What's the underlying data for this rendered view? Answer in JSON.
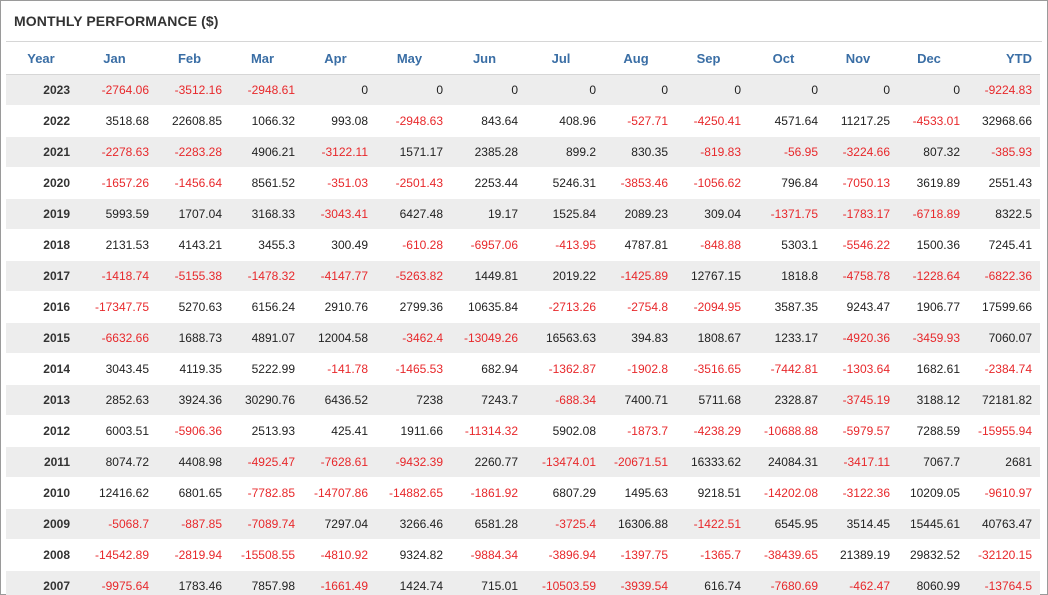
{
  "title": "MONTHLY PERFORMANCE ($)",
  "colors": {
    "header_text": "#3a6ea5",
    "negative": "#e8282b",
    "positive": "#222222",
    "stripe": "#ededed"
  },
  "headers": [
    "Year",
    "Jan",
    "Feb",
    "Mar",
    "Apr",
    "May",
    "Jun",
    "Jul",
    "Aug",
    "Sep",
    "Oct",
    "Nov",
    "Dec",
    "YTD"
  ],
  "rows": [
    {
      "year": "2023",
      "values": [
        "-2764.06",
        "-3512.16",
        "-2948.61",
        "0",
        "0",
        "0",
        "0",
        "0",
        "0",
        "0",
        "0",
        "0"
      ],
      "ytd": "-9224.83"
    },
    {
      "year": "2022",
      "values": [
        "3518.68",
        "22608.85",
        "1066.32",
        "993.08",
        "-2948.63",
        "843.64",
        "408.96",
        "-527.71",
        "-4250.41",
        "4571.64",
        "11217.25",
        "-4533.01"
      ],
      "ytd": "32968.66"
    },
    {
      "year": "2021",
      "values": [
        "-2278.63",
        "-2283.28",
        "4906.21",
        "-3122.11",
        "1571.17",
        "2385.28",
        "899.2",
        "830.35",
        "-819.83",
        "-56.95",
        "-3224.66",
        "807.32"
      ],
      "ytd": "-385.93"
    },
    {
      "year": "2020",
      "values": [
        "-1657.26",
        "-1456.64",
        "8561.52",
        "-351.03",
        "-2501.43",
        "2253.44",
        "5246.31",
        "-3853.46",
        "-1056.62",
        "796.84",
        "-7050.13",
        "3619.89"
      ],
      "ytd": "2551.43"
    },
    {
      "year": "2019",
      "values": [
        "5993.59",
        "1707.04",
        "3168.33",
        "-3043.41",
        "6427.48",
        "19.17",
        "1525.84",
        "2089.23",
        "309.04",
        "-1371.75",
        "-1783.17",
        "-6718.89"
      ],
      "ytd": "8322.5"
    },
    {
      "year": "2018",
      "values": [
        "2131.53",
        "4143.21",
        "3455.3",
        "300.49",
        "-610.28",
        "-6957.06",
        "-413.95",
        "4787.81",
        "-848.88",
        "5303.1",
        "-5546.22",
        "1500.36"
      ],
      "ytd": "7245.41"
    },
    {
      "year": "2017",
      "values": [
        "-1418.74",
        "-5155.38",
        "-1478.32",
        "-4147.77",
        "-5263.82",
        "1449.81",
        "2019.22",
        "-1425.89",
        "12767.15",
        "1818.8",
        "-4758.78",
        "-1228.64"
      ],
      "ytd": "-6822.36"
    },
    {
      "year": "2016",
      "values": [
        "-17347.75",
        "5270.63",
        "6156.24",
        "2910.76",
        "2799.36",
        "10635.84",
        "-2713.26",
        "-2754.8",
        "-2094.95",
        "3587.35",
        "9243.47",
        "1906.77"
      ],
      "ytd": "17599.66"
    },
    {
      "year": "2015",
      "values": [
        "-6632.66",
        "1688.73",
        "4891.07",
        "12004.58",
        "-3462.4",
        "-13049.26",
        "16563.63",
        "394.83",
        "1808.67",
        "1233.17",
        "-4920.36",
        "-3459.93"
      ],
      "ytd": "7060.07"
    },
    {
      "year": "2014",
      "values": [
        "3043.45",
        "4119.35",
        "5222.99",
        "-141.78",
        "-1465.53",
        "682.94",
        "-1362.87",
        "-1902.8",
        "-3516.65",
        "-7442.81",
        "-1303.64",
        "1682.61"
      ],
      "ytd": "-2384.74"
    },
    {
      "year": "2013",
      "values": [
        "2852.63",
        "3924.36",
        "30290.76",
        "6436.52",
        "7238",
        "7243.7",
        "-688.34",
        "7400.71",
        "5711.68",
        "2328.87",
        "-3745.19",
        "3188.12"
      ],
      "ytd": "72181.82"
    },
    {
      "year": "2012",
      "values": [
        "6003.51",
        "-5906.36",
        "2513.93",
        "425.41",
        "1911.66",
        "-11314.32",
        "5902.08",
        "-1873.7",
        "-4238.29",
        "-10688.88",
        "-5979.57",
        "7288.59"
      ],
      "ytd": "-15955.94"
    },
    {
      "year": "2011",
      "values": [
        "8074.72",
        "4408.98",
        "-4925.47",
        "-7628.61",
        "-9432.39",
        "2260.77",
        "-13474.01",
        "-20671.51",
        "16333.62",
        "24084.31",
        "-3417.11",
        "7067.7"
      ],
      "ytd": "2681"
    },
    {
      "year": "2010",
      "values": [
        "12416.62",
        "6801.65",
        "-7782.85",
        "-14707.86",
        "-14882.65",
        "-1861.92",
        "6807.29",
        "1495.63",
        "9218.51",
        "-14202.08",
        "-3122.36",
        "10209.05"
      ],
      "ytd": "-9610.97"
    },
    {
      "year": "2009",
      "values": [
        "-5068.7",
        "-887.85",
        "-7089.74",
        "7297.04",
        "3266.46",
        "6581.28",
        "-3725.4",
        "16306.88",
        "-1422.51",
        "6545.95",
        "3514.45",
        "15445.61"
      ],
      "ytd": "40763.47"
    },
    {
      "year": "2008",
      "values": [
        "-14542.89",
        "-2819.94",
        "-15508.55",
        "-4810.92",
        "9324.82",
        "-9884.34",
        "-3896.94",
        "-1397.75",
        "-1365.7",
        "-38439.65",
        "21389.19",
        "29832.52"
      ],
      "ytd": "-32120.15"
    },
    {
      "year": "2007",
      "values": [
        "-9975.64",
        "1783.46",
        "7857.98",
        "-1661.49",
        "1424.74",
        "715.01",
        "-10503.59",
        "-3939.54",
        "616.74",
        "-7680.69",
        "-462.47",
        "8060.99"
      ],
      "ytd": "-13764.5"
    }
  ]
}
